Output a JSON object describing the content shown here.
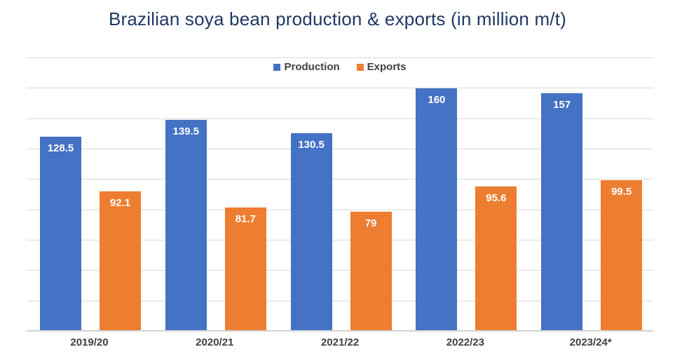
{
  "title": "Brazilian soya bean production & exports (in million m/t)",
  "legend": [
    {
      "label": "Production",
      "color": "#4472C4"
    },
    {
      "label": "Exports",
      "color": "#ED7D31"
    }
  ],
  "chart_data": {
    "type": "bar",
    "title": "Brazilian soya bean production & exports (in million m/t)",
    "categories": [
      "2019/20",
      "2020/21",
      "2021/22",
      "2022/23",
      "2023/24*"
    ],
    "series": [
      {
        "name": "Production",
        "color": "#4472C4",
        "values": [
          128.5,
          139.5,
          130.5,
          160,
          157
        ]
      },
      {
        "name": "Exports",
        "color": "#ED7D31",
        "values": [
          92.1,
          81.7,
          79,
          95.6,
          99.5
        ]
      }
    ],
    "xlabel": "",
    "ylabel": "",
    "ylim": [
      0,
      180
    ],
    "grid_step": 20,
    "grid": true,
    "y_axis_labels_visible": false,
    "legend_position": "top",
    "value_labels": "inside-end",
    "value_label_color": "#FFFFFF"
  },
  "colors": {
    "background": "#FFFFFF",
    "title": "#1F3864",
    "gridline": "#D9D9D9",
    "axis_line": "#D2D2D2",
    "axis_label": "#404040",
    "production": "#4472C4",
    "exports": "#ED7D31"
  }
}
